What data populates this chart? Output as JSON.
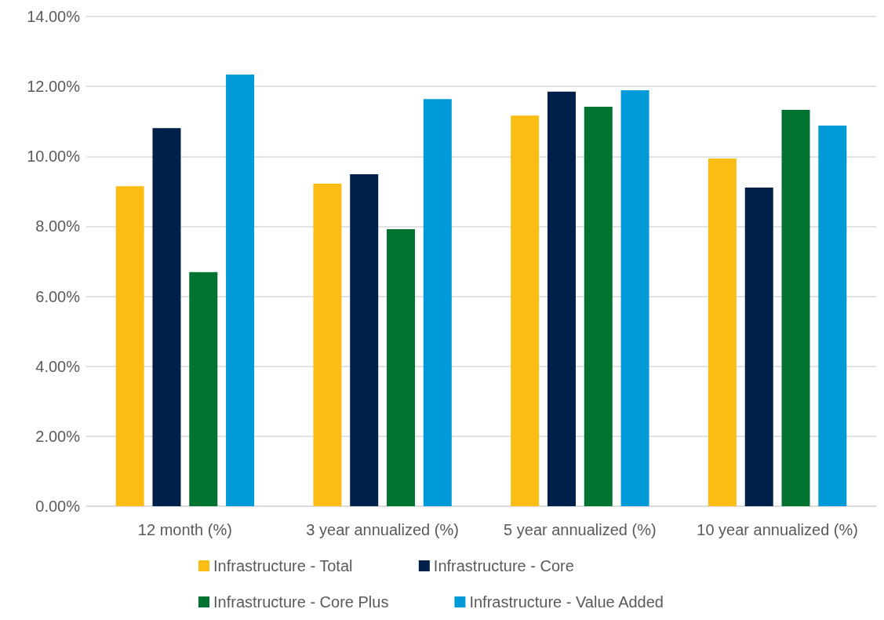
{
  "chart_data": {
    "type": "bar",
    "categories": [
      "12 month (%)",
      "3 year annualized (%)",
      "5 year annualized (%)",
      "10 year annualized (%)"
    ],
    "series": [
      {
        "name": "Infrastructure - Total",
        "color": "#fbbc13",
        "values": [
          9.15,
          9.22,
          11.17,
          9.94
        ]
      },
      {
        "name": "Infrastructure - Core",
        "color": "#00204a",
        "values": [
          10.81,
          9.49,
          11.85,
          9.11
        ]
      },
      {
        "name": "Infrastructure - Core Plus",
        "color": "#007330",
        "values": [
          6.69,
          7.92,
          11.42,
          11.33
        ]
      },
      {
        "name": "Infrastructure - Value Added",
        "color": "#009ad9",
        "values": [
          12.34,
          11.64,
          11.89,
          10.88
        ]
      }
    ],
    "ylim": [
      0,
      14
    ],
    "yticks": [
      {
        "value": 0,
        "label": "0.00%"
      },
      {
        "value": 2,
        "label": "2.00%"
      },
      {
        "value": 4,
        "label": "4.00%"
      },
      {
        "value": 6,
        "label": "6.00%"
      },
      {
        "value": 8,
        "label": "8.00%"
      },
      {
        "value": 10,
        "label": "10.00%"
      },
      {
        "value": 12,
        "label": "12.00%"
      },
      {
        "value": 14,
        "label": "14.00%"
      }
    ],
    "grid": "y",
    "legend": "bottom"
  }
}
